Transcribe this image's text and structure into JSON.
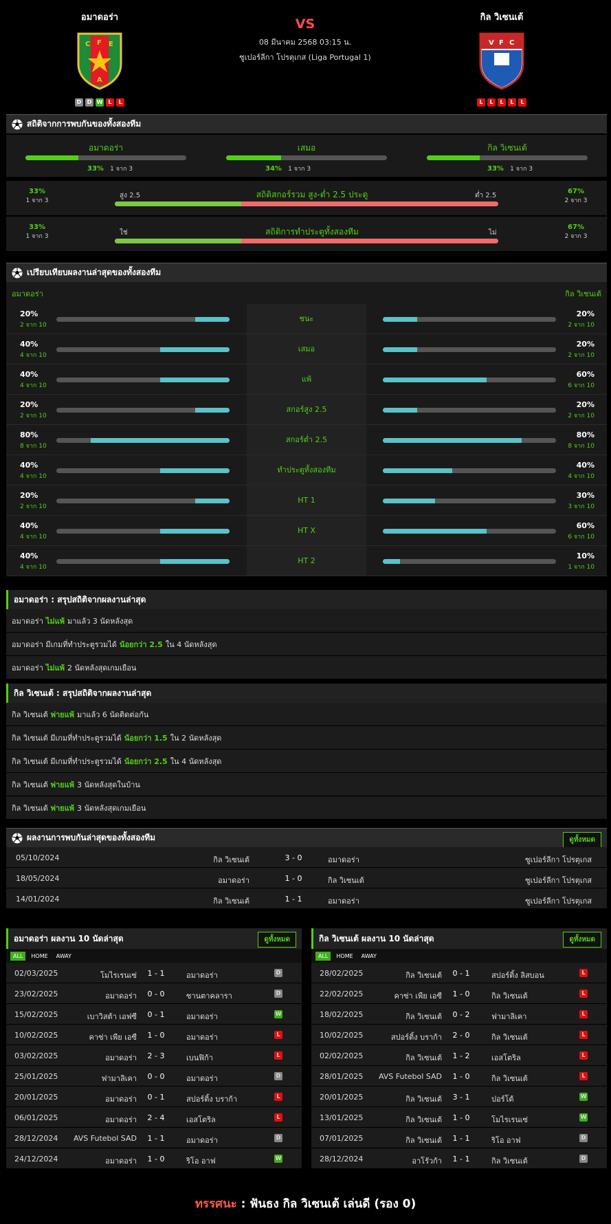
{
  "match": {
    "home": "อมาดอร่า",
    "away": "กิล วิเซนเต้",
    "vs": "VS",
    "datetime": "08 มีนาคม 2568 03:15 น.",
    "league": "ซูเปอร์ลีกา โปรตุเกส (Liga Portugal 1)",
    "home_form": [
      "D",
      "D",
      "W",
      "L",
      "L"
    ],
    "away_form": [
      "L",
      "L",
      "L",
      "L",
      "L"
    ],
    "home_crest": [
      "C",
      "F",
      "E",
      "A"
    ],
    "away_crest": [
      "V",
      "F",
      "C"
    ]
  },
  "h2h_stats": {
    "title": "สถิติจากการพบกันของทั้งสองทีม",
    "home": {
      "label": "อมาดอร่า",
      "pct": "33%",
      "cnt": "1 จาก 3"
    },
    "draw": {
      "label": "เสมอ",
      "pct": "34%",
      "cnt": "1 จาก 3"
    },
    "away": {
      "label": "กิล วิเซนเต้",
      "pct": "33%",
      "cnt": "1 จาก 3"
    },
    "ou": {
      "title": "สถิติสกอร์รวม สูง-ต่ำ 2.5 ประตู",
      "left_label": "สูง 2.5",
      "right_label": "ต่ำ 2.5",
      "left_pct": "33%",
      "left_cnt": "1 จาก 3",
      "right_pct": "67%",
      "right_cnt": "2 จาก 3",
      "left_value": 0.33
    },
    "btts": {
      "title": "สถิติการทำประตูทั้งสองทีม",
      "left_label": "ใช่",
      "right_label": "ไม่",
      "left_pct": "33%",
      "left_cnt": "1 จาก 3",
      "right_pct": "67%",
      "right_cnt": "2 จาก 3",
      "left_value": 0.33
    }
  },
  "compare": {
    "title": "เปรียบเทียบผลงานล่าสุดของทั้งสองทีม",
    "home": "อมาดอร่า",
    "away": "กิล วิเซนเต้",
    "rows": [
      {
        "label": "ชนะ",
        "hp": "20%",
        "hc": "2 จาก 10",
        "hv": 0.2,
        "ap": "20%",
        "ac": "2 จาก 10",
        "av": 0.2
      },
      {
        "label": "เสมอ",
        "hp": "40%",
        "hc": "4 จาก 10",
        "hv": 0.4,
        "ap": "20%",
        "ac": "2 จาก 10",
        "av": 0.2
      },
      {
        "label": "แพ้",
        "hp": "40%",
        "hc": "4 จาก 10",
        "hv": 0.4,
        "ap": "60%",
        "ac": "6 จาก 10",
        "av": 0.6
      },
      {
        "label": "สกอร์สูง 2.5",
        "hp": "20%",
        "hc": "2 จาก 10",
        "hv": 0.2,
        "ap": "20%",
        "ac": "2 จาก 10",
        "av": 0.2
      },
      {
        "label": "สกอร์ต่ำ 2.5",
        "hp": "80%",
        "hc": "8 จาก 10",
        "hv": 0.8,
        "ap": "80%",
        "ac": "8 จาก 10",
        "av": 0.8
      },
      {
        "label": "ทำประตูทั้งสองทีม",
        "hp": "40%",
        "hc": "4 จาก 10",
        "hv": 0.4,
        "ap": "40%",
        "ac": "4 จาก 10",
        "av": 0.4
      },
      {
        "label": "HT 1",
        "hp": "20%",
        "hc": "2 จาก 10",
        "hv": 0.2,
        "ap": "30%",
        "ac": "3 จาก 10",
        "av": 0.3
      },
      {
        "label": "HT X",
        "hp": "40%",
        "hc": "4 จาก 10",
        "hv": 0.4,
        "ap": "60%",
        "ac": "6 จาก 10",
        "av": 0.6
      },
      {
        "label": "HT 2",
        "hp": "40%",
        "hc": "4 จาก 10",
        "hv": 0.4,
        "ap": "10%",
        "ac": "1 จาก 10",
        "av": 0.1
      }
    ]
  },
  "summary_home": {
    "title": "อมาดอร่า : สรุปสถิติจากผลงานล่าสุด",
    "rows": [
      [
        "อมาดอร่า ",
        "ไม่แพ้",
        " มาแล้ว 3 นัดหลังสุด"
      ],
      [
        "อมาดอร่า มีเกมที่ทำประตูรวมได้ ",
        "น้อยกว่า 2.5",
        " ใน 4 นัดหลังสุด"
      ],
      [
        "อมาดอร่า ",
        "ไม่แพ้",
        " 2 นัดหลังสุดเกมเยือน"
      ]
    ]
  },
  "summary_away": {
    "title": "กิล วิเซนเต้ : สรุปสถิติจากผลงานล่าสุด",
    "rows": [
      [
        "กิล วิเซนเต้ ",
        "พ่ายแพ้",
        " มาแล้ว 6 นัดติดต่อกัน"
      ],
      [
        "กิล วิเซนเต้ มีเกมที่ทำประตูรวมได้ ",
        "น้อยกว่า 1.5",
        " ใน 2 นัดหลังสุด"
      ],
      [
        "กิล วิเซนเต้ มีเกมที่ทำประตูรวมได้ ",
        "น้อยกว่า 2.5",
        " ใน 4 นัดหลังสุด"
      ],
      [
        "กิล วิเซนเต้ ",
        "พ่ายแพ้",
        " 3 นัดหลังสุดในบ้าน"
      ],
      [
        "กิล วิเซนเต้ ",
        "พ่ายแพ้",
        " 3 นัดหลังสุดเกมเยือน"
      ]
    ]
  },
  "h2h_results": {
    "title": "ผลงานการพบกันล่าสุดของทั้งสองทีม",
    "view_all": "ดูทั้งหมด",
    "rows": [
      [
        "05/10/2024",
        "กิล วิเซนเต้",
        "3 - 0",
        "อมาดอร่า",
        "ซูเปอร์ลีกา โปรตุเกส"
      ],
      [
        "18/05/2024",
        "อมาดอร่า",
        "1 - 0",
        "กิล วิเซนเต้",
        "ซูเปอร์ลีกา โปรตุเกส"
      ],
      [
        "14/01/2024",
        "กิล วิเซนเต้",
        "1 - 1",
        "อมาดอร่า",
        "ซูเปอร์ลีกา โปรตุเกส"
      ]
    ]
  },
  "last10_home": {
    "title": "อมาดอร่า ผลงาน 10 นัดล่าสุด",
    "view_all": "ดูทั้งหมด",
    "tabs": [
      "ALL",
      "HOME",
      "AWAY"
    ],
    "rows": [
      [
        "02/03/2025",
        "โมไรเรนเซ่",
        "1 - 1",
        "อมาดอร่า",
        "D"
      ],
      [
        "23/02/2025",
        "อมาดอร่า",
        "0 - 0",
        "ซานตาคลารา",
        "D"
      ],
      [
        "15/02/2025",
        "เบาวิสต้า เอฟซี",
        "0 - 1",
        "อมาดอร่า",
        "W"
      ],
      [
        "10/02/2025",
        "คาซ่า เพีย เอซี",
        "1 - 0",
        "อมาดอร่า",
        "L"
      ],
      [
        "03/02/2025",
        "อมาดอร่า",
        "2 - 3",
        "เบนฟิก้า",
        "L"
      ],
      [
        "25/01/2025",
        "ฟามาลิเคา",
        "0 - 0",
        "อมาดอร่า",
        "D"
      ],
      [
        "20/01/2025",
        "อมาดอร่า",
        "0 - 1",
        "สปอร์ติ้ง บราก้า",
        "L"
      ],
      [
        "06/01/2025",
        "อมาดอร่า",
        "2 - 4",
        "เอสโตริล",
        "L"
      ],
      [
        "28/12/2024",
        "AVS Futebol SAD",
        "1 - 1",
        "อมาดอร่า",
        "D"
      ],
      [
        "24/12/2024",
        "อมาดอร่า",
        "1 - 0",
        "ริโอ อาฟ",
        "W"
      ]
    ]
  },
  "last10_away": {
    "title": "กิล วิเซนเต้ ผลงาน 10 นัดล่าสุด",
    "view_all": "ดูทั้งหมด",
    "tabs": [
      "ALL",
      "HOME",
      "AWAY"
    ],
    "rows": [
      [
        "28/02/2025",
        "กิล วิเซนเต้",
        "0 - 1",
        "สปอร์ติ้ง ลิสบอน",
        "L"
      ],
      [
        "22/02/2025",
        "คาซ่า เพีย เอซี",
        "1 - 0",
        "กิล วิเซนเต้",
        "L"
      ],
      [
        "18/02/2025",
        "กิล วิเซนเต้",
        "0 - 2",
        "ฟามาลิเคา",
        "L"
      ],
      [
        "10/02/2025",
        "สปอร์ติ้ง บราก้า",
        "2 - 0",
        "กิล วิเซนเต้",
        "L"
      ],
      [
        "02/02/2025",
        "กิล วิเซนเต้",
        "1 - 2",
        "เอสโตริล",
        "L"
      ],
      [
        "28/01/2025",
        "AVS Futebol SAD",
        "1 - 0",
        "กิล วิเซนเต้",
        "L"
      ],
      [
        "20/01/2025",
        "กิล วิเซนเต้",
        "3 - 1",
        "ปอร์โต้",
        "W"
      ],
      [
        "13/01/2025",
        "กิล วิเซนเต้",
        "1 - 0",
        "โมไรเรนเซ่",
        "W"
      ],
      [
        "07/01/2025",
        "กิล วิเซนเต้",
        "1 - 1",
        "ริโอ อาฟ",
        "D"
      ],
      [
        "28/12/2024",
        "อาโรัวก้า",
        "1 - 1",
        "กิล วิเซนเต้",
        "D"
      ]
    ]
  },
  "prediction": {
    "label": "ทรรศนะ",
    "colon": " : ",
    "text": "ฟันธง กิล วิเซนเต้ เล่นดี (รอง 0)"
  },
  "colors": {
    "green": "#52d017",
    "cyan": "#5bc2c9",
    "red": "#f26b6b",
    "draw_badge": "#888888",
    "win_badge": "#3db11a",
    "loss_badge": "#e01010"
  },
  "icons": {
    "section": "soccer-ball-icon"
  }
}
